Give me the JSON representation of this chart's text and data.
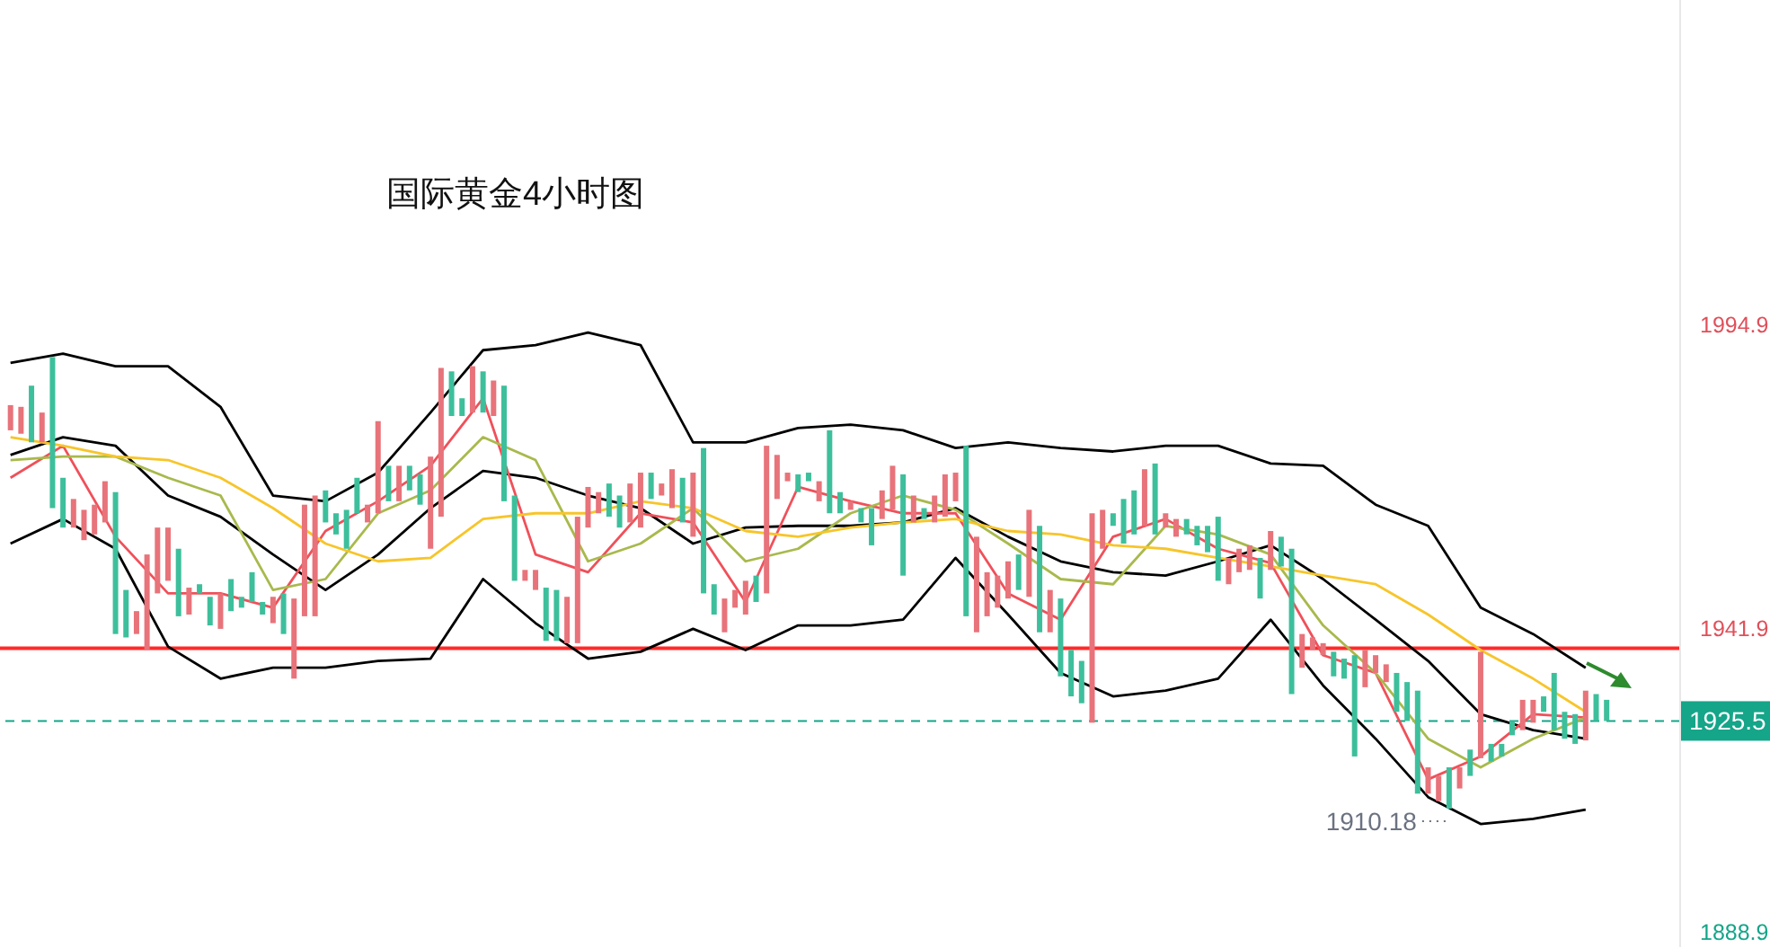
{
  "chart_data": {
    "type": "candlestick",
    "title": "国际黄金4小时图",
    "categories": [
      null,
      null,
      null,
      null,
      null,
      null,
      null,
      null,
      null,
      null,
      null,
      null,
      null,
      null,
      null,
      null,
      null,
      null,
      null,
      null,
      null,
      null,
      null,
      null,
      null,
      null,
      null,
      null,
      null,
      null,
      null,
      null,
      null,
      null,
      null,
      null,
      null,
      null,
      null,
      null,
      null,
      null,
      null,
      null,
      null,
      null,
      null,
      null,
      null,
      null,
      null,
      null,
      null,
      null,
      null,
      null,
      null,
      null,
      null,
      null,
      null,
      null,
      null,
      null,
      null,
      null,
      null,
      null,
      null,
      null,
      null,
      null,
      null,
      null,
      null,
      null,
      null,
      null,
      null,
      null,
      null,
      null,
      null,
      null,
      null,
      null,
      null,
      null,
      null,
      null,
      null,
      null,
      null,
      null,
      null,
      null,
      null,
      null,
      null,
      null,
      null,
      null,
      null,
      null,
      null,
      null,
      null,
      null,
      null,
      null,
      null,
      null,
      null,
      null,
      null,
      null,
      null,
      null,
      null,
      null,
      null,
      null,
      null,
      null,
      null,
      null,
      null,
      null,
      null,
      null,
      null,
      null,
      null,
      null,
      null,
      null,
      null,
      null,
      null,
      null,
      null,
      null,
      null,
      null,
      null,
      null,
      null,
      null,
      null,
      null,
      null,
      null,
      null
    ],
    "ohlc": [
      [
        1976.3,
        1980.7,
        1976.3,
        1980.7
      ],
      [
        1975.7,
        1980.4,
        1975.7,
        1980.4
      ],
      [
        1984.1,
        1984.1,
        1974.2,
        1974.2
      ],
      [
        1974.2,
        1979.4,
        1974.2,
        1979.4
      ],
      [
        1989.1,
        1989.1,
        1962.7,
        1962.7
      ],
      [
        1968.0,
        1968.0,
        1959.3,
        1959.3
      ],
      [
        1959.3,
        1964.3,
        1959.3,
        1964.3
      ],
      [
        1957.1,
        1962.4,
        1957.1,
        1962.4
      ],
      [
        1958.1,
        1963.3,
        1958.1,
        1963.3
      ],
      [
        1960.2,
        1967.4,
        1960.2,
        1967.4
      ],
      [
        1965.5,
        1965.5,
        1940.7,
        1940.7
      ],
      [
        1948.4,
        1948.4,
        1940.1,
        1940.1
      ],
      [
        1940.7,
        1944.7,
        1940.7,
        1944.7
      ],
      [
        1937.9,
        1954.6,
        1937.9,
        1954.6
      ],
      [
        1947.8,
        1959.3,
        1947.8,
        1959.3
      ],
      [
        1950.0,
        1959.3,
        1950.0,
        1959.3
      ],
      [
        1955.6,
        1955.6,
        1943.8,
        1943.8
      ],
      [
        1944.1,
        1948.8,
        1944.1,
        1948.8
      ],
      [
        1949.4,
        1949.4,
        1947.8,
        1947.8
      ],
      [
        1947.2,
        1947.2,
        1942.2,
        1942.2
      ],
      [
        1941.6,
        1947.8,
        1941.6,
        1947.8
      ],
      [
        1950.3,
        1950.3,
        1944.7,
        1944.7
      ],
      [
        1947.2,
        1947.2,
        1945.3,
        1945.3
      ],
      [
        1951.5,
        1951.5,
        1946.3,
        1946.3
      ],
      [
        1946.3,
        1946.3,
        1944.1,
        1944.1
      ],
      [
        1942.6,
        1947.2,
        1942.6,
        1947.2
      ],
      [
        1947.8,
        1947.8,
        1940.7,
        1940.7
      ],
      [
        1932.9,
        1946.9,
        1932.9,
        1946.9
      ],
      [
        1943.8,
        1963.3,
        1943.8,
        1963.3
      ],
      [
        1943.8,
        1964.9,
        1943.8,
        1964.9
      ],
      [
        1965.8,
        1965.8,
        1960.2,
        1960.2
      ],
      [
        1961.8,
        1961.8,
        1958.1,
        1958.1
      ],
      [
        1962.4,
        1962.4,
        1955.6,
        1955.6
      ],
      [
        1968.0,
        1968.0,
        1961.8,
        1961.8
      ],
      [
        1960.2,
        1963.3,
        1960.2,
        1963.3
      ],
      [
        1961.8,
        1977.9,
        1961.8,
        1977.9
      ],
      [
        1970.1,
        1970.1,
        1963.9,
        1963.9
      ],
      [
        1963.9,
        1970.1,
        1963.9,
        1970.1
      ],
      [
        1970.1,
        1970.1,
        1965.8,
        1965.8
      ],
      [
        1968.6,
        1968.6,
        1963.3,
        1963.3
      ],
      [
        1955.6,
        1971.7,
        1955.6,
        1971.7
      ],
      [
        1961.2,
        1987.2,
        1961.2,
        1987.2
      ],
      [
        1986.6,
        1986.6,
        1978.8,
        1978.8
      ],
      [
        1981.9,
        1981.9,
        1978.8,
        1978.8
      ],
      [
        1979.4,
        1987.5,
        1979.4,
        1987.5
      ],
      [
        1986.6,
        1986.6,
        1979.4,
        1979.4
      ],
      [
        1978.8,
        1985.0,
        1978.8,
        1985.0
      ],
      [
        1984.1,
        1984.1,
        1963.9,
        1963.9
      ],
      [
        1964.9,
        1964.9,
        1950.0,
        1950.0
      ],
      [
        1950.0,
        1951.9,
        1950.0,
        1951.9
      ],
      [
        1948.4,
        1951.9,
        1948.4,
        1951.9
      ],
      [
        1948.8,
        1948.8,
        1939.5,
        1939.5
      ],
      [
        1948.4,
        1948.4,
        1939.5,
        1939.5
      ],
      [
        1939.1,
        1947.2,
        1939.1,
        1947.2
      ],
      [
        1939.1,
        1961.2,
        1939.1,
        1961.2
      ],
      [
        1959.3,
        1966.4,
        1959.3,
        1966.4
      ],
      [
        1961.8,
        1965.5,
        1961.8,
        1965.5
      ],
      [
        1967.0,
        1967.0,
        1961.2,
        1961.2
      ],
      [
        1964.9,
        1964.9,
        1959.3,
        1959.3
      ],
      [
        1960.2,
        1967.0,
        1960.2,
        1967.0
      ],
      [
        1959.3,
        1968.9,
        1959.3,
        1968.9
      ],
      [
        1968.9,
        1968.9,
        1964.3,
        1964.3
      ],
      [
        1964.9,
        1967.0,
        1964.9,
        1967.0
      ],
      [
        1962.7,
        1969.5,
        1962.7,
        1969.5
      ],
      [
        1968.0,
        1968.0,
        1960.2,
        1960.2
      ],
      [
        1957.7,
        1968.9,
        1957.7,
        1968.9
      ],
      [
        1973.2,
        1973.2,
        1947.8,
        1947.8
      ],
      [
        1949.4,
        1949.4,
        1944.1,
        1944.1
      ],
      [
        1941.0,
        1946.9,
        1941.0,
        1946.9
      ],
      [
        1945.3,
        1948.4,
        1945.3,
        1948.4
      ],
      [
        1944.1,
        1950.0,
        1944.1,
        1950.0
      ],
      [
        1950.9,
        1950.9,
        1946.3,
        1946.3
      ],
      [
        1947.8,
        1973.6,
        1947.8,
        1973.6
      ],
      [
        1964.3,
        1972.0,
        1964.3,
        1972.0
      ],
      [
        1967.4,
        1968.9,
        1967.4,
        1968.9
      ],
      [
        1968.6,
        1968.6,
        1965.5,
        1965.5
      ],
      [
        1968.9,
        1968.9,
        1967.4,
        1967.4
      ],
      [
        1963.9,
        1967.4,
        1963.9,
        1967.4
      ],
      [
        1976.3,
        1976.3,
        1961.8,
        1961.8
      ],
      [
        1965.5,
        1965.5,
        1961.8,
        1961.8
      ],
      [
        1962.4,
        1963.9,
        1962.4,
        1963.9
      ],
      [
        1962.7,
        1962.7,
        1960.2,
        1960.2
      ],
      [
        1962.7,
        1962.7,
        1956.2,
        1956.2
      ],
      [
        1960.8,
        1965.8,
        1960.8,
        1965.8
      ],
      [
        1962.4,
        1970.1,
        1962.4,
        1970.1
      ],
      [
        1968.6,
        1968.6,
        1950.9,
        1950.9
      ],
      [
        1960.2,
        1964.9,
        1960.2,
        1964.9
      ],
      [
        1962.7,
        1962.7,
        1960.8,
        1960.8
      ],
      [
        1960.2,
        1964.9,
        1960.2,
        1964.9
      ],
      [
        1961.2,
        1968.6,
        1961.2,
        1968.6
      ],
      [
        1963.9,
        1968.9,
        1963.9,
        1968.9
      ],
      [
        1973.6,
        1973.6,
        1943.8,
        1943.8
      ],
      [
        1941.0,
        1957.7,
        1941.0,
        1957.7
      ],
      [
        1943.8,
        1951.5,
        1943.8,
        1951.5
      ],
      [
        1945.3,
        1950.9,
        1945.3,
        1950.9
      ],
      [
        1946.9,
        1953.4,
        1946.9,
        1953.4
      ],
      [
        1954.6,
        1954.6,
        1948.4,
        1948.4
      ],
      [
        1947.2,
        1962.4,
        1947.2,
        1962.4
      ],
      [
        1959.6,
        1959.6,
        1941.0,
        1941.0
      ],
      [
        1941.0,
        1948.4,
        1941.0,
        1948.4
      ],
      [
        1946.9,
        1946.9,
        1933.3,
        1933.3
      ],
      [
        1937.9,
        1937.9,
        1929.8,
        1929.8
      ],
      [
        1936.0,
        1936.0,
        1928.6,
        1928.6
      ],
      [
        1925.2,
        1961.8,
        1925.2,
        1961.8
      ],
      [
        1955.6,
        1962.4,
        1955.6,
        1962.4
      ],
      [
        1961.8,
        1961.8,
        1959.6,
        1959.6
      ],
      [
        1964.3,
        1964.3,
        1956.5,
        1956.5
      ],
      [
        1965.8,
        1965.8,
        1958.1,
        1958.1
      ],
      [
        1959.6,
        1969.5,
        1959.6,
        1969.5
      ],
      [
        1970.5,
        1970.5,
        1958.1,
        1958.1
      ],
      [
        1959.3,
        1961.8,
        1959.3,
        1961.8
      ],
      [
        1957.7,
        1960.8,
        1957.7,
        1960.8
      ],
      [
        1960.8,
        1960.8,
        1958.1,
        1958.1
      ],
      [
        1959.6,
        1959.6,
        1956.2,
        1956.2
      ],
      [
        1959.6,
        1959.6,
        1955.0,
        1955.0
      ],
      [
        1961.2,
        1961.2,
        1950.0,
        1950.0
      ],
      [
        1949.4,
        1954.0,
        1949.4,
        1954.0
      ],
      [
        1951.5,
        1955.6,
        1951.5,
        1955.6
      ],
      [
        1951.9,
        1956.2,
        1951.9,
        1956.2
      ],
      [
        1954.0,
        1954.0,
        1946.9,
        1946.9
      ],
      [
        1951.9,
        1958.7,
        1951.9,
        1958.7
      ],
      [
        1957.7,
        1957.7,
        1952.5,
        1952.5
      ],
      [
        1955.6,
        1955.6,
        1930.2,
        1930.2
      ],
      [
        1934.8,
        1940.7,
        1934.8,
        1940.7
      ],
      [
        1937.9,
        1940.1,
        1937.9,
        1940.1
      ],
      [
        1937.0,
        1939.1,
        1937.0,
        1939.1
      ],
      [
        1937.6,
        1937.6,
        1933.3,
        1933.3
      ],
      [
        1936.4,
        1936.4,
        1932.9,
        1932.9
      ],
      [
        1937.0,
        1937.0,
        1919.3,
        1919.3
      ],
      [
        1931.4,
        1937.9,
        1931.4,
        1937.9
      ],
      [
        1933.9,
        1937.0,
        1933.9,
        1937.0
      ],
      [
        1932.3,
        1935.4,
        1932.3,
        1935.4
      ],
      [
        1933.9,
        1933.9,
        1927.1,
        1927.1
      ],
      [
        1932.3,
        1932.3,
        1925.5,
        1925.5
      ],
      [
        1930.8,
        1930.8,
        1912.8,
        1912.8
      ],
      [
        1912.8,
        1917.4,
        1912.8,
        1917.4
      ],
      [
        1911.5,
        1915.9,
        1911.5,
        1915.9
      ],
      [
        1917.4,
        1917.4,
        1910.18,
        1910.18
      ],
      [
        1913.7,
        1917.4,
        1913.7,
        1917.4
      ],
      [
        1920.5,
        1920.5,
        1915.9,
        1915.9
      ],
      [
        1919.0,
        1937.6,
        1919.0,
        1937.6
      ],
      [
        1921.5,
        1921.5,
        1918.4,
        1918.4
      ],
      [
        1921.5,
        1921.5,
        1919.3,
        1919.3
      ],
      [
        1925.5,
        1925.5,
        1923.0,
        1923.0
      ],
      [
        1923.9,
        1929.2,
        1923.9,
        1929.2
      ],
      [
        1925.2,
        1929.2,
        1925.2,
        1929.2
      ],
      [
        1929.8,
        1929.8,
        1927.1,
        1927.1
      ],
      [
        1933.9,
        1933.9,
        1923.9,
        1923.9
      ],
      [
        1927.1,
        1927.1,
        1922.4,
        1922.4
      ],
      [
        1926.7,
        1926.7,
        1921.5,
        1921.5
      ],
      [
        1922.1,
        1930.8,
        1922.1,
        1930.8
      ],
      [
        1930.2,
        1930.2,
        1925.5,
        1925.5
      ],
      [
        1929.2,
        1929.2,
        1925.5,
        1925.5
      ]
    ],
    "series": [
      {
        "type": "line",
        "color": "#000000",
        "values": [
          1988.1,
          null,
          null,
          null,
          null,
          1989.7,
          null,
          null,
          null,
          null,
          1987.5,
          null,
          null,
          null,
          null,
          1987.5,
          null,
          null,
          null,
          null,
          1980.4,
          null,
          null,
          null,
          null,
          1964.9,
          null,
          null,
          null,
          null,
          1963.9,
          null,
          null,
          null,
          null,
          1968.9,
          null,
          null,
          null,
          null,
          1979.4,
          null,
          null,
          null,
          null,
          1990.3,
          null,
          null,
          null,
          null,
          1991.2,
          null,
          null,
          null,
          null,
          1993.4,
          null,
          null,
          null,
          null,
          1991.2,
          null,
          null,
          null,
          null,
          1974.2,
          null,
          null,
          null,
          null,
          1974.2,
          null,
          null,
          null,
          null,
          1976.7,
          null,
          null,
          null,
          null,
          1977.3,
          null,
          null,
          null,
          null,
          1976.3,
          null,
          null,
          null,
          null,
          1973.2,
          null,
          null,
          null,
          null,
          1974.2,
          null,
          null,
          null,
          null,
          1973.2,
          null,
          null,
          null,
          null,
          1972.6,
          null,
          null,
          null,
          null,
          1973.6,
          null,
          null,
          null,
          null,
          1973.6,
          null,
          null,
          null,
          null,
          1970.5,
          null,
          null,
          null,
          null,
          1970.1,
          null,
          null,
          null,
          null,
          1963.3,
          null,
          null,
          null,
          null,
          1959.6,
          null,
          null,
          null,
          null,
          1945.3,
          null,
          null,
          null,
          null,
          1940.7,
          null,
          null,
          null,
          null,
          1934.8,
          null,
          null
        ]
      },
      {
        "type": "line",
        "color": "#000000",
        "values": [
          1972.0,
          null,
          null,
          null,
          null,
          1975.1,
          null,
          null,
          null,
          null,
          1973.6,
          null,
          null,
          null,
          null,
          1964.9,
          null,
          null,
          null,
          null,
          1961.2,
          null,
          null,
          null,
          null,
          1954.6,
          null,
          null,
          null,
          null,
          1948.4,
          null,
          null,
          null,
          null,
          1954.6,
          null,
          null,
          null,
          null,
          1962.7,
          null,
          null,
          null,
          null,
          1969.2,
          null,
          null,
          null,
          null,
          1968.0,
          null,
          null,
          null,
          null,
          1964.9,
          null,
          null,
          null,
          null,
          1962.7,
          null,
          null,
          null,
          null,
          1956.5,
          null,
          null,
          null,
          null,
          1959.3,
          null,
          null,
          null,
          null,
          1959.6,
          null,
          null,
          null,
          null,
          1959.6,
          null,
          null,
          null,
          null,
          1960.2,
          null,
          null,
          null,
          null,
          1962.7,
          null,
          null,
          null,
          null,
          1957.7,
          null,
          null,
          null,
          null,
          1953.4,
          null,
          null,
          null,
          null,
          1951.5,
          null,
          null,
          null,
          null,
          1950.9,
          null,
          null,
          null,
          null,
          1953.4,
          null,
          null,
          null,
          null,
          1956.2,
          null,
          null,
          null,
          null,
          1950.3,
          null,
          null,
          null,
          null,
          1943.2,
          null,
          null,
          null,
          null,
          1936.0,
          null,
          null,
          null,
          null,
          1926.7,
          null,
          null,
          null,
          null,
          1923.9,
          null,
          null,
          null,
          null,
          1922.4,
          null,
          null
        ]
      },
      {
        "type": "line",
        "color": "#000000",
        "values": [
          1956.5,
          null,
          null,
          null,
          null,
          1960.8,
          null,
          null,
          null,
          null,
          1955.6,
          null,
          null,
          null,
          null,
          1938.5,
          null,
          null,
          null,
          null,
          1932.9,
          null,
          null,
          null,
          null,
          1934.8,
          null,
          null,
          null,
          null,
          1934.8,
          null,
          null,
          null,
          null,
          1936.0,
          null,
          null,
          null,
          null,
          1936.4,
          null,
          null,
          null,
          null,
          1950.3,
          null,
          null,
          null,
          null,
          1942.6,
          null,
          null,
          null,
          null,
          1936.4,
          null,
          null,
          null,
          null,
          1937.6,
          null,
          null,
          null,
          null,
          1941.6,
          null,
          null,
          null,
          null,
          1937.9,
          null,
          null,
          null,
          null,
          1942.2,
          null,
          null,
          null,
          null,
          1942.2,
          null,
          null,
          null,
          null,
          1943.2,
          null,
          null,
          null,
          null,
          1954.0,
          null,
          null,
          null,
          null,
          1944.1,
          null,
          null,
          null,
          null,
          1933.9,
          null,
          null,
          null,
          null,
          1929.8,
          null,
          null,
          null,
          null,
          1930.8,
          null,
          null,
          null,
          null,
          1932.9,
          null,
          null,
          null,
          null,
          1943.2,
          null,
          null,
          null,
          null,
          1931.7,
          null,
          null,
          null,
          null,
          1922.4,
          null,
          null,
          null,
          null,
          1912.2,
          null,
          null,
          null,
          null,
          1907.5,
          null,
          null,
          null,
          null,
          1908.4,
          null,
          null,
          null,
          null,
          1910.0,
          null,
          null
        ]
      },
      {
        "type": "line",
        "color": "#f0505a",
        "values": [
          1968.0,
          null,
          null,
          null,
          null,
          1973.6,
          null,
          null,
          null,
          null,
          1957.7,
          null,
          null,
          null,
          null,
          1947.8,
          null,
          null,
          null,
          null,
          1947.8,
          null,
          null,
          null,
          null,
          1945.3,
          null,
          null,
          null,
          null,
          1958.7,
          null,
          null,
          null,
          null,
          1963.9,
          null,
          null,
          null,
          null,
          1970.1,
          null,
          null,
          null,
          null,
          1981.9,
          null,
          null,
          null,
          null,
          1954.6,
          null,
          null,
          null,
          null,
          1951.5,
          null,
          null,
          null,
          null,
          1961.8,
          null,
          null,
          null,
          null,
          1960.2,
          null,
          null,
          null,
          null,
          1946.3,
          null,
          null,
          null,
          null,
          1966.4,
          null,
          null,
          null,
          null,
          1963.9,
          null,
          null,
          null,
          null,
          1961.8,
          null,
          null,
          null,
          null,
          1961.8,
          null,
          null,
          null,
          null,
          1947.8,
          null,
          null,
          null,
          null,
          1943.2,
          null,
          null,
          null,
          null,
          1957.7,
          null,
          null,
          null,
          null,
          1960.8,
          null,
          null,
          null,
          null,
          1955.6,
          null,
          null,
          null,
          null,
          1953.1,
          null,
          null,
          null,
          null,
          1937.0,
          null,
          null,
          null,
          null,
          1933.9,
          null,
          null,
          null,
          null,
          1915.3,
          null,
          null,
          null,
          null,
          1919.3,
          null,
          null,
          null,
          null,
          1926.7,
          null,
          null,
          null,
          null,
          1926.1,
          null,
          null
        ]
      },
      {
        "type": "line",
        "color": "#a9b94c",
        "values": [
          1971.1,
          null,
          null,
          null,
          null,
          1971.7,
          null,
          null,
          null,
          null,
          1971.7,
          null,
          null,
          null,
          null,
          1968.0,
          null,
          null,
          null,
          null,
          1964.9,
          null,
          null,
          null,
          null,
          1948.4,
          null,
          null,
          null,
          null,
          1950.3,
          null,
          null,
          null,
          null,
          1961.8,
          null,
          null,
          null,
          null,
          1965.8,
          null,
          null,
          null,
          null,
          1975.1,
          null,
          null,
          null,
          null,
          1971.1,
          null,
          null,
          null,
          null,
          1953.4,
          null,
          null,
          null,
          null,
          1956.5,
          null,
          null,
          null,
          null,
          1962.7,
          null,
          null,
          null,
          null,
          1953.4,
          null,
          null,
          null,
          null,
          1955.6,
          null,
          null,
          null,
          null,
          1961.8,
          null,
          null,
          null,
          null,
          1964.9,
          null,
          null,
          null,
          null,
          1962.4,
          null,
          null,
          null,
          null,
          1956.5,
          null,
          null,
          null,
          null,
          1950.3,
          null,
          null,
          null,
          null,
          1949.4,
          null,
          null,
          null,
          null,
          1959.6,
          null,
          null,
          null,
          null,
          1958.1,
          null,
          null,
          null,
          null,
          1954.6,
          null,
          null,
          null,
          null,
          1942.2,
          null,
          null,
          null,
          null,
          1933.9,
          null,
          null,
          null,
          null,
          1922.4,
          null,
          null,
          null,
          null,
          1917.4,
          null,
          null,
          null,
          null,
          1922.4,
          null,
          null,
          null,
          null,
          1926.1,
          null,
          null
        ]
      },
      {
        "type": "line",
        "color": "#f7c52a",
        "values": [
          1975.1,
          null,
          null,
          null,
          null,
          1973.6,
          null,
          null,
          null,
          null,
          1971.7,
          null,
          null,
          null,
          null,
          1971.1,
          null,
          null,
          null,
          null,
          1968.0,
          null,
          null,
          null,
          null,
          1962.7,
          null,
          null,
          null,
          null,
          1956.5,
          null,
          null,
          null,
          null,
          1953.4,
          null,
          null,
          null,
          null,
          1954.0,
          null,
          null,
          null,
          null,
          1960.8,
          null,
          null,
          null,
          null,
          1961.8,
          null,
          null,
          null,
          null,
          1961.8,
          null,
          null,
          null,
          null,
          1963.9,
          null,
          null,
          null,
          null,
          1962.7,
          null,
          null,
          null,
          null,
          1958.7,
          null,
          null,
          null,
          null,
          1957.7,
          null,
          null,
          null,
          null,
          1959.3,
          null,
          null,
          null,
          null,
          1960.2,
          null,
          null,
          null,
          null,
          1960.8,
          null,
          null,
          null,
          null,
          1958.7,
          null,
          null,
          null,
          null,
          1958.1,
          null,
          null,
          null,
          null,
          1956.2,
          null,
          null,
          null,
          null,
          1955.6,
          null,
          null,
          null,
          null,
          1954.0,
          null,
          null,
          null,
          null,
          1952.5,
          null,
          null,
          null,
          null,
          1950.9,
          null,
          null,
          null,
          null,
          1949.4,
          null,
          null,
          null,
          null,
          1944.1,
          null,
          null,
          null,
          null,
          1937.9,
          null,
          null,
          null,
          null,
          1932.9,
          null,
          null,
          null,
          null,
          1927.1,
          null,
          null
        ]
      }
    ],
    "ylim": [
      1886,
      2051.5
    ],
    "yticks": [
      1888.9,
      1941.9,
      1994.9
    ],
    "tick_labels": "y",
    "ref_lines": [
      {
        "axis": "y",
        "value": 1938.2,
        "color": "#ff2a2a",
        "line_style": "solid"
      },
      {
        "axis": "y",
        "value": 1925.5,
        "label": "1925.5",
        "color": "#15a589",
        "line_style": "dashed"
      }
    ],
    "annotations": [
      "1910.18"
    ]
  }
}
